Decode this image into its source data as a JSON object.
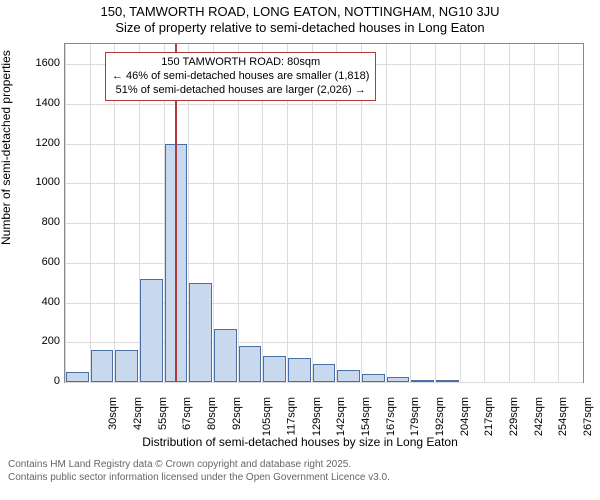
{
  "title": {
    "line1": "150, TAMWORTH ROAD, LONG EATON, NOTTINGHAM, NG10 3JU",
    "line2": "Size of property relative to semi-detached houses in Long Eaton"
  },
  "chart": {
    "type": "histogram",
    "background_color": "#ffffff",
    "grid_color": "#dcdcdc",
    "axis_color": "#888888",
    "bar_fill": "#c8d8ef",
    "bar_border": "#4a6fa5",
    "marker_color": "#b33a3a",
    "ylabel": "Number of semi-detached properties",
    "xlabel": "Distribution of semi-detached houses by size in Long Eaton",
    "y": {
      "min": 0,
      "max": 1700,
      "tick_step": 200,
      "ticks": [
        0,
        200,
        400,
        600,
        800,
        1000,
        1200,
        1400,
        1600
      ]
    },
    "x": {
      "categories": [
        "30sqm",
        "42sqm",
        "55sqm",
        "67sqm",
        "80sqm",
        "92sqm",
        "105sqm",
        "117sqm",
        "129sqm",
        "142sqm",
        "154sqm",
        "167sqm",
        "179sqm",
        "192sqm",
        "204sqm",
        "217sqm",
        "229sqm",
        "242sqm",
        "254sqm",
        "267sqm",
        "279sqm"
      ]
    },
    "values": [
      50,
      160,
      160,
      520,
      1200,
      500,
      270,
      180,
      130,
      120,
      90,
      60,
      40,
      25,
      10,
      5,
      0,
      0,
      0,
      0,
      0
    ],
    "marker_index": 4,
    "annotation": {
      "line1": "150 TAMWORTH ROAD: 80sqm",
      "line2": "← 46% of semi-detached houses are smaller (1,818)",
      "line3": "51% of semi-detached houses are larger (2,026) →"
    },
    "label_fontsize": 12,
    "tick_fontsize": 11,
    "title_fontsize": 13
  },
  "footer": {
    "line1": "Contains HM Land Registry data © Crown copyright and database right 2025.",
    "line2": "Contains public sector information licensed under the Open Government Licence v3.0."
  }
}
